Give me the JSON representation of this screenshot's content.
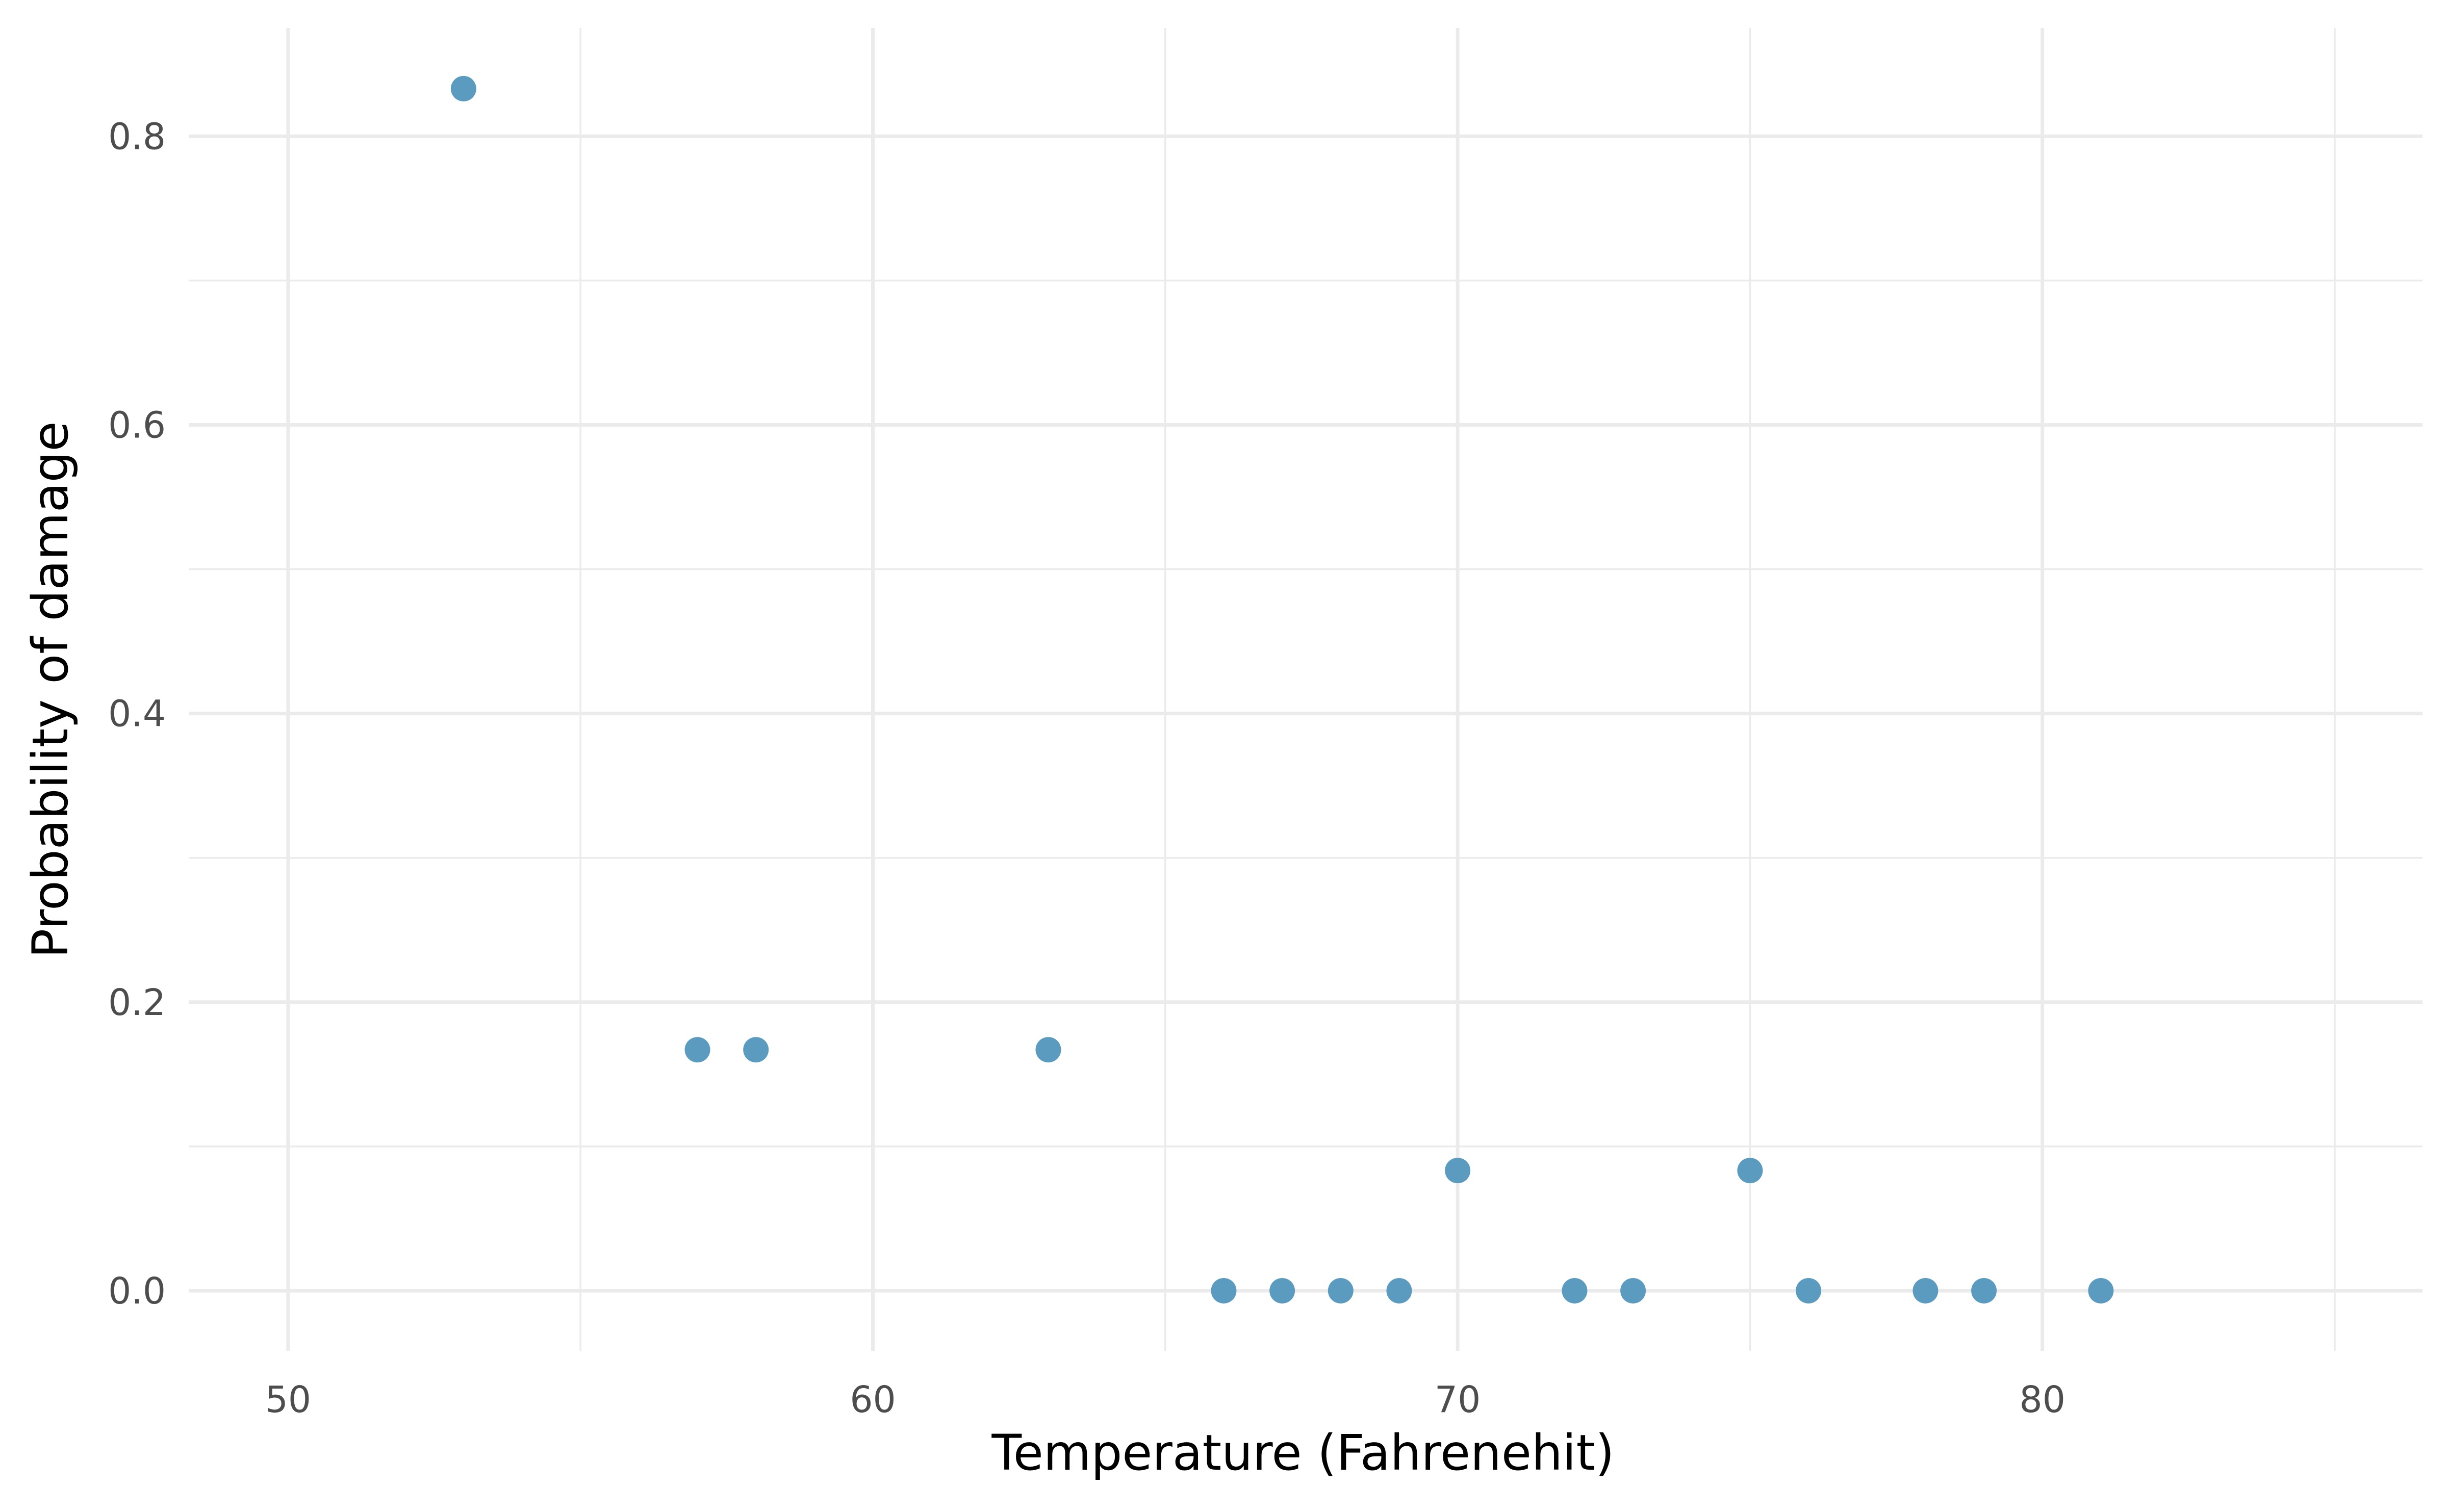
{
  "chart_data": {
    "type": "scatter",
    "xlabel": "Temperature (Fahrenehit)",
    "ylabel": "Probability of damage",
    "xlim": [
      48.3,
      86.5
    ],
    "ylim": [
      -0.0417,
      0.875
    ],
    "x_ticks": [
      50,
      60,
      70,
      80
    ],
    "x_tick_labels": [
      "50",
      "60",
      "70",
      "80"
    ],
    "y_ticks": [
      0.0,
      0.2,
      0.4,
      0.6,
      0.8
    ],
    "y_tick_labels": [
      "0.0",
      "0.2",
      "0.4",
      "0.6",
      "0.8"
    ],
    "x_minor_ticks": [
      55,
      65,
      75,
      85
    ],
    "y_minor_ticks": [
      0.1,
      0.3,
      0.5,
      0.7
    ],
    "grid": true,
    "point_color": "#5b9bc0",
    "points": [
      {
        "x": 53,
        "y": 0.833
      },
      {
        "x": 57,
        "y": 0.167
      },
      {
        "x": 58,
        "y": 0.167
      },
      {
        "x": 63,
        "y": 0.167
      },
      {
        "x": 66,
        "y": 0.0
      },
      {
        "x": 67,
        "y": 0.0
      },
      {
        "x": 68,
        "y": 0.0
      },
      {
        "x": 69,
        "y": 0.0
      },
      {
        "x": 70,
        "y": 0.0833
      },
      {
        "x": 72,
        "y": 0.0
      },
      {
        "x": 73,
        "y": 0.0
      },
      {
        "x": 75,
        "y": 0.0833
      },
      {
        "x": 76,
        "y": 0.0
      },
      {
        "x": 78,
        "y": 0.0
      },
      {
        "x": 79,
        "y": 0.0
      },
      {
        "x": 81,
        "y": 0.0
      }
    ]
  }
}
